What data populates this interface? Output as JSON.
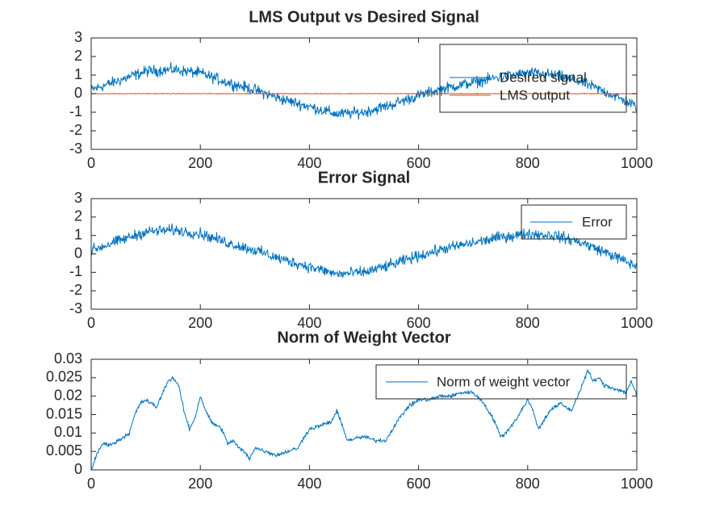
{
  "chart_data": [
    {
      "type": "line",
      "title": "LMS Output vs Desired Signal",
      "xlabel": "",
      "ylabel": "",
      "xlim": [
        0,
        1000
      ],
      "ylim": [
        -3,
        3
      ],
      "xticks": [
        0,
        200,
        400,
        600,
        800,
        1000
      ],
      "yticks": [
        3,
        2,
        1,
        0,
        -1,
        -2,
        -3
      ],
      "grid": false,
      "legend": "top-right",
      "series": [
        {
          "name": "Desired signal",
          "color": "#0072bd",
          "trend_x": [
            0,
            50,
            100,
            150,
            200,
            250,
            300,
            350,
            400,
            450,
            500,
            550,
            600,
            650,
            700,
            750,
            800,
            850,
            900,
            950,
            1000
          ],
          "trend_y": [
            0.2,
            0.7,
            1.2,
            1.3,
            1.1,
            0.6,
            0.2,
            -0.3,
            -0.7,
            -1.1,
            -1.0,
            -0.6,
            -0.1,
            0.3,
            0.6,
            0.9,
            1.1,
            1.0,
            0.6,
            0.0,
            -0.7
          ],
          "noise_amplitude": 0.45,
          "samples": 1000
        },
        {
          "name": "LMS output",
          "color": "#d95319",
          "trend_x": [
            0,
            1000
          ],
          "trend_y": [
            0.0,
            0.0
          ],
          "noise_amplitude": 0.03,
          "samples": 1000
        }
      ]
    },
    {
      "type": "line",
      "title": "Error Signal",
      "xlabel": "",
      "ylabel": "",
      "xlim": [
        0,
        1000
      ],
      "ylim": [
        -3,
        3
      ],
      "xticks": [
        0,
        200,
        400,
        600,
        800,
        1000
      ],
      "yticks": [
        3,
        2,
        1,
        0,
        -1,
        -2,
        -3
      ],
      "grid": false,
      "legend": "top-right",
      "series": [
        {
          "name": "Error",
          "color": "#0072bd",
          "trend_x": [
            0,
            50,
            100,
            150,
            200,
            250,
            300,
            350,
            400,
            450,
            500,
            550,
            600,
            650,
            700,
            750,
            800,
            850,
            900,
            950,
            1000
          ],
          "trend_y": [
            0.2,
            0.7,
            1.2,
            1.3,
            1.1,
            0.6,
            0.2,
            -0.3,
            -0.7,
            -1.1,
            -1.0,
            -0.6,
            -0.1,
            0.3,
            0.6,
            0.9,
            1.1,
            1.0,
            0.6,
            0.0,
            -0.7
          ],
          "noise_amplitude": 0.45,
          "samples": 1000
        }
      ]
    },
    {
      "type": "line",
      "title": "Norm of Weight Vector",
      "xlabel": "",
      "ylabel": "",
      "xlim": [
        0,
        1000
      ],
      "ylim": [
        0,
        0.03
      ],
      "xticks": [
        0,
        200,
        400,
        600,
        800,
        1000
      ],
      "yticks": [
        "0.03",
        "0.025",
        "0.02",
        "0.015",
        "0.01",
        "0.005",
        "0"
      ],
      "grid": false,
      "legend": "top-right",
      "series": [
        {
          "name": "Norm of weight vector",
          "color": "#0072bd",
          "x": [
            0,
            10,
            20,
            40,
            60,
            70,
            80,
            90,
            100,
            120,
            140,
            150,
            160,
            170,
            180,
            190,
            200,
            210,
            220,
            240,
            250,
            260,
            270,
            280,
            290,
            300,
            320,
            340,
            360,
            380,
            390,
            400,
            420,
            440,
            450,
            460,
            470,
            500,
            520,
            540,
            560,
            580,
            600,
            620,
            640,
            660,
            680,
            700,
            720,
            740,
            750,
            760,
            780,
            800,
            810,
            820,
            840,
            860,
            880,
            900,
            910,
            920,
            930,
            940,
            960,
            980,
            990,
            1000
          ],
          "y": [
            0.0,
            0.004,
            0.007,
            0.007,
            0.009,
            0.01,
            0.015,
            0.018,
            0.019,
            0.017,
            0.024,
            0.025,
            0.023,
            0.016,
            0.011,
            0.014,
            0.02,
            0.016,
            0.013,
            0.011,
            0.007,
            0.008,
            0.006,
            0.005,
            0.003,
            0.006,
            0.005,
            0.004,
            0.005,
            0.006,
            0.009,
            0.011,
            0.012,
            0.013,
            0.016,
            0.012,
            0.008,
            0.009,
            0.008,
            0.008,
            0.013,
            0.017,
            0.019,
            0.019,
            0.02,
            0.02,
            0.021,
            0.021,
            0.018,
            0.013,
            0.009,
            0.01,
            0.014,
            0.019,
            0.016,
            0.011,
            0.016,
            0.018,
            0.016,
            0.023,
            0.027,
            0.024,
            0.025,
            0.023,
            0.022,
            0.021,
            0.024,
            0.02
          ],
          "noise_amplitude": 0.0008,
          "samples": 1000
        }
      ]
    }
  ]
}
